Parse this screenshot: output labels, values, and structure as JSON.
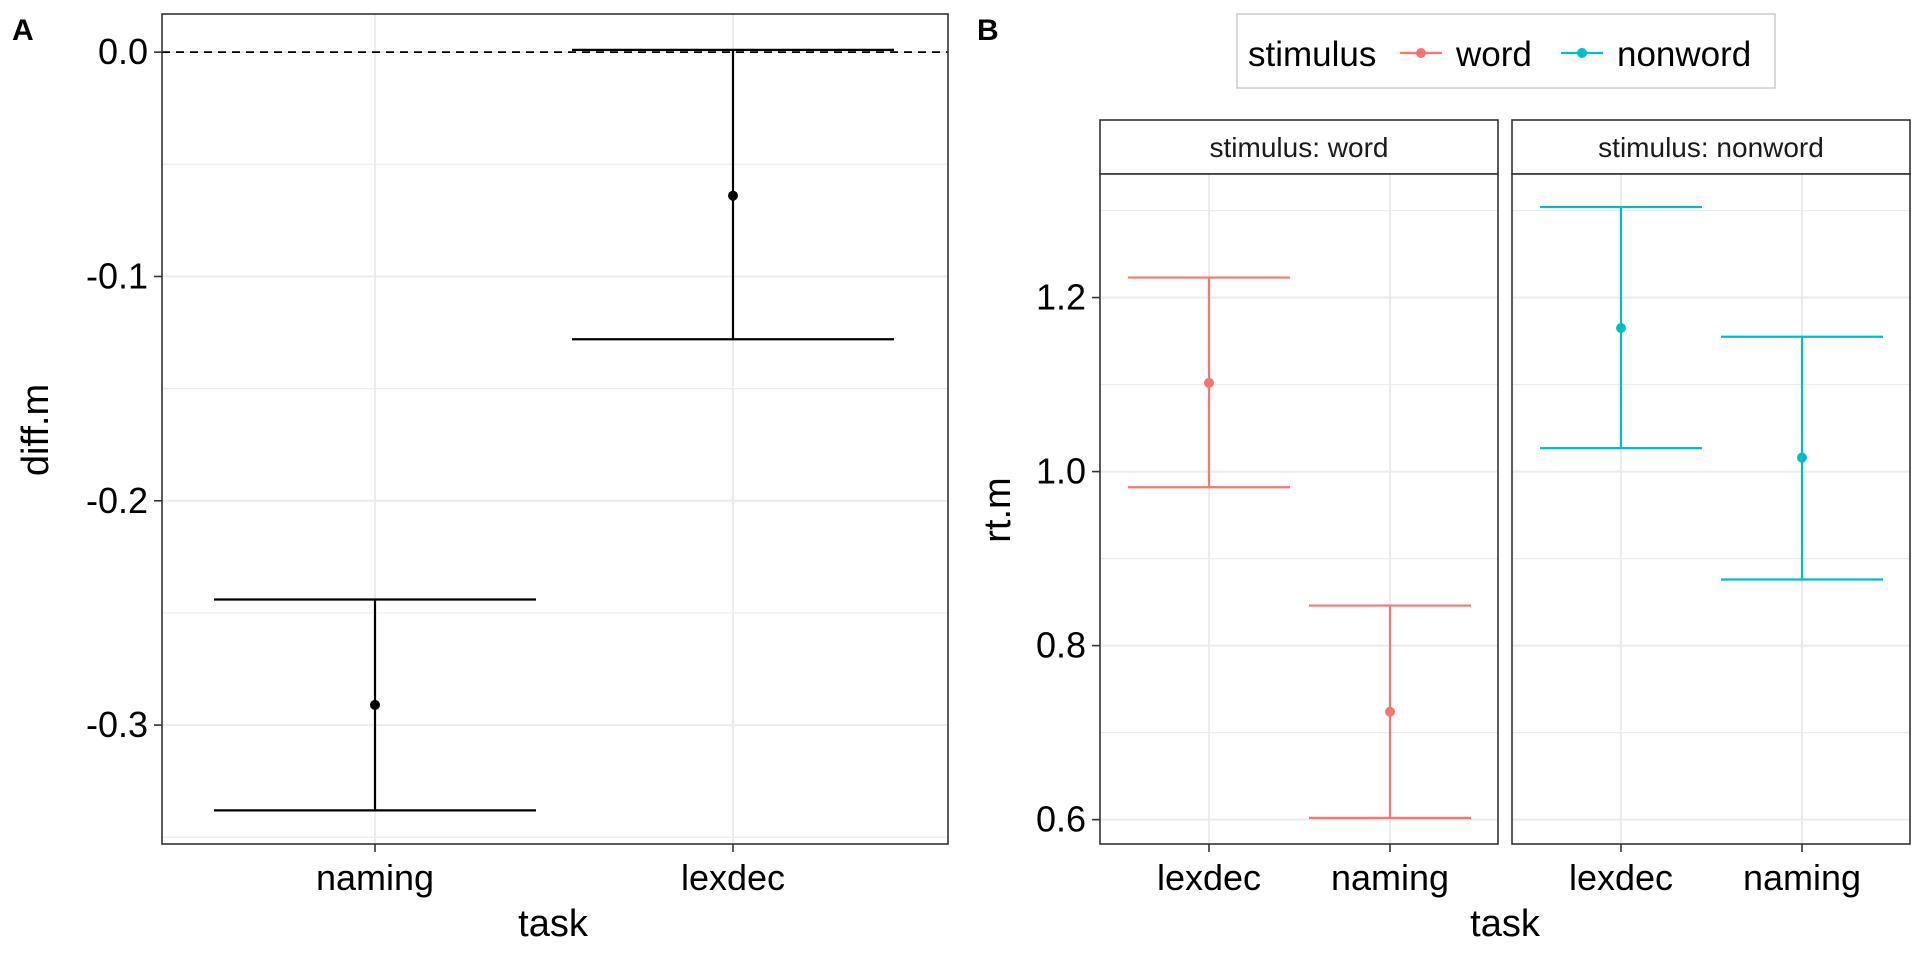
{
  "colors": {
    "word": "#F8766D",
    "nonword": "#00BFC4",
    "black": "#000000",
    "grid": "#EBEBEB"
  },
  "chart_data": [
    {
      "panel": "A",
      "type": "errorbar",
      "xlabel": "task",
      "ylabel": "diff.m",
      "ylim": [
        -0.353,
        0.017
      ],
      "yticks": [
        0.0,
        -0.1,
        -0.2,
        -0.3
      ],
      "ytick_labels": [
        "0.0",
        "-0.1",
        "-0.2",
        "-0.3"
      ],
      "reference_line": 0.0,
      "categories": [
        "naming",
        "lexdec"
      ],
      "points": [
        {
          "task": "naming",
          "mean": -0.291,
          "lower": -0.338,
          "upper": -0.244
        },
        {
          "task": "lexdec",
          "mean": -0.064,
          "lower": -0.128,
          "upper": 0.001
        }
      ],
      "grid": true
    },
    {
      "panel": "B",
      "type": "errorbar",
      "xlabel": "task",
      "ylabel": "rt.m",
      "ylim": [
        0.572,
        1.342
      ],
      "yticks": [
        0.6,
        0.8,
        1.0,
        1.2
      ],
      "ytick_labels": [
        "0.6",
        "0.8",
        "1.0",
        "1.2"
      ],
      "legend": {
        "title": "stimulus",
        "position": "top",
        "entries": [
          "word",
          "nonword"
        ]
      },
      "facets": [
        {
          "strip": "stimulus: word",
          "stimulus": "word",
          "categories": [
            "lexdec",
            "naming"
          ],
          "points": [
            {
              "task": "lexdec",
              "mean": 1.102,
              "lower": 0.982,
              "upper": 1.223
            },
            {
              "task": "naming",
              "mean": 0.724,
              "lower": 0.602,
              "upper": 0.846
            }
          ]
        },
        {
          "strip": "stimulus: nonword",
          "stimulus": "nonword",
          "categories": [
            "lexdec",
            "naming"
          ],
          "points": [
            {
              "task": "lexdec",
              "mean": 1.165,
              "lower": 1.027,
              "upper": 1.304
            },
            {
              "task": "naming",
              "mean": 1.016,
              "lower": 0.876,
              "upper": 1.155
            }
          ]
        }
      ],
      "grid": true
    }
  ]
}
